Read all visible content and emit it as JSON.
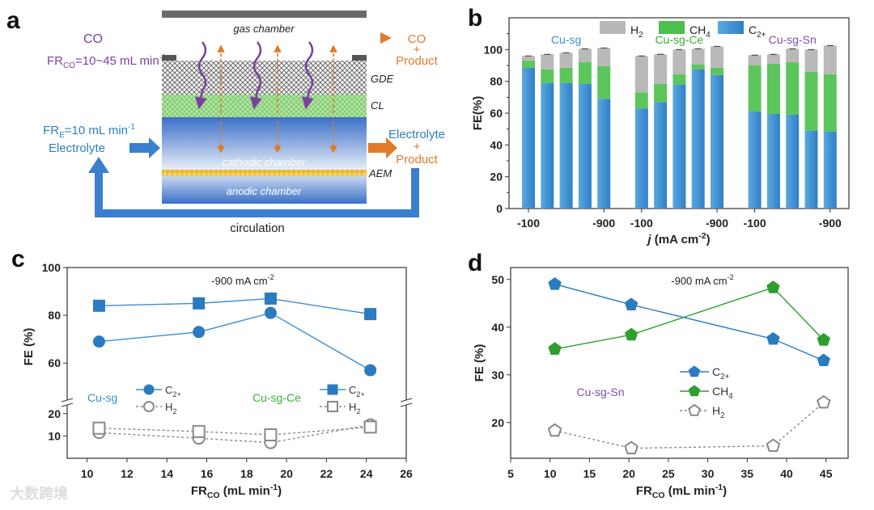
{
  "panel_labels": [
    "a",
    "b",
    "c",
    "d"
  ],
  "panel_a": {
    "gas_chamber": "gas chamber",
    "co_in": "CO",
    "fr_co": "FR",
    "fr_co_sub": "CO",
    "fr_co_value": "=10~45 mL min",
    "fr_co_exp": "-1",
    "co_out_1": "CO",
    "co_out_2": "+",
    "co_out_3": "Product",
    "gde": "GDE",
    "cl": "CL",
    "aem": "AEM",
    "fr_e": "FR",
    "fr_e_sub": "E",
    "fr_e_value": "=10 mL min",
    "fr_e_exp": "-1",
    "electrolyte_in": "Electrolyte",
    "cathodic": "cathodic chamber",
    "anodic": "anodic chamber",
    "out_1": "Electrolyte",
    "out_2": "+",
    "out_3": "Product",
    "circulation": "circulation",
    "colors": {
      "purple": "#7b3fa0",
      "orange": "#e07b2a",
      "blue": "#2f7fc1"
    }
  },
  "watermark": "大数跨境",
  "chart_data": [
    {
      "type": "bar",
      "stacked": true,
      "ylabel": "FE(%)",
      "xlabel_italic": "j",
      "xlabel": " (mA cm",
      "xlabel_exp": "-2",
      "xlabel_end": ")",
      "ylim": [
        0,
        120
      ],
      "yticks": [
        0,
        20,
        40,
        60,
        80,
        100
      ],
      "legend": [
        {
          "name": "H",
          "sub": "2",
          "color": "#b8b8b8"
        },
        {
          "name": "CH",
          "sub": "4",
          "color": "#4cbf4c"
        },
        {
          "name": "C",
          "sub": "2+",
          "color": "#3a8fd0"
        }
      ],
      "groups": [
        {
          "name": "Cu-sg",
          "color": "#3a8fd0",
          "tick_labels": [
            "-100",
            "",
            "",
            "",
            "-900"
          ],
          "C2+": [
            88.5,
            79,
            79,
            78.5,
            69
          ],
          "CH4": [
            4.5,
            8.5,
            9.5,
            13.5,
            20.5
          ],
          "H2": [
            3,
            9.5,
            9.5,
            8.5,
            11.5
          ]
        },
        {
          "name": "Cu-sg-Ce",
          "color": "#3aae3a",
          "tick_labels": [
            "-100",
            "",
            "",
            "",
            "-900"
          ],
          "C2+": [
            63,
            67,
            78,
            87.5,
            84
          ],
          "CH4": [
            10,
            11.5,
            6.5,
            3,
            4.5
          ],
          "H2": [
            23,
            18.5,
            15.5,
            10,
            13.5
          ]
        },
        {
          "name": "Cu-sg-Sn",
          "color": "#7b4fb0",
          "tick_labels": [
            "-100",
            "",
            "",
            "",
            "-900"
          ],
          "C2+": [
            61,
            59.5,
            59,
            49,
            48.5
          ],
          "CH4": [
            29,
            31.5,
            33,
            37,
            36
          ],
          "H2": [
            6.5,
            6,
            8.5,
            14,
            18
          ]
        }
      ]
    },
    {
      "type": "line",
      "annotation": "-900 mA cm",
      "annotation_exp": "-2",
      "ylabel": "FE (%)",
      "xlabel": "FR",
      "xlabel_sub": "CO",
      "xlabel_end": " (mL min",
      "xlabel_exp": "-1",
      "xlabel_close": ")",
      "xlim": [
        9,
        26
      ],
      "xticks": [
        10,
        12,
        14,
        16,
        18,
        20,
        22,
        24,
        26
      ],
      "y_broken": {
        "upper": [
          43.5,
          100
        ],
        "lower": [
          0,
          25
        ]
      },
      "yticks": [
        10,
        20,
        60,
        80,
        100
      ],
      "groups": [
        {
          "name": "Cu-sg",
          "color": "#3a8fd0"
        },
        {
          "name": "Cu-sg-Ce",
          "color": "#3aae3a"
        }
      ],
      "series": [
        {
          "group": 0,
          "name": "C",
          "sub": "2+",
          "marker": "circle",
          "filled": true,
          "color": "#2a7bbf",
          "x": [
            10.6,
            15.6,
            19.2,
            24.2
          ],
          "y": [
            69,
            73,
            81,
            57
          ]
        },
        {
          "group": 0,
          "name": "H",
          "sub": "2",
          "marker": "circle",
          "filled": false,
          "color": "#888888",
          "x": [
            10.6,
            15.6,
            19.2,
            24.2
          ],
          "y": [
            11.5,
            9,
            7,
            15
          ]
        },
        {
          "group": 1,
          "name": "C",
          "sub": "2+",
          "marker": "square",
          "filled": true,
          "color": "#2a7bbf",
          "x": [
            10.6,
            15.6,
            19.2,
            24.2
          ],
          "y": [
            84,
            85,
            87,
            80.5
          ]
        },
        {
          "group": 1,
          "name": "H",
          "sub": "2",
          "marker": "square",
          "filled": false,
          "color": "#888888",
          "x": [
            10.6,
            15.6,
            19.2,
            24.2
          ],
          "y": [
            13.5,
            12,
            10.5,
            14
          ]
        }
      ]
    },
    {
      "type": "line",
      "annotation": "-900 mA cm",
      "annotation_exp": "-2",
      "ylabel": "FE (%)",
      "xlabel": "FR",
      "xlabel_sub": "CO",
      "xlabel_end": " (mL min",
      "xlabel_exp": "-1",
      "xlabel_close": ")",
      "xlim": [
        5,
        47.8
      ],
      "ylim": [
        12.5,
        52.5
      ],
      "xticks": [
        5,
        10,
        15,
        20,
        25,
        30,
        35,
        40,
        45
      ],
      "yticks": [
        20,
        30,
        40,
        50
      ],
      "group_label": {
        "name": "Cu-sg-Sn",
        "color": "#7b4fb0"
      },
      "series": [
        {
          "name": "C",
          "sub": "2+",
          "marker": "pentagon",
          "filled": true,
          "color": "#2a7bbf",
          "x": [
            10.6,
            20.3,
            38.3,
            44.7
          ],
          "y": [
            49,
            44.7,
            37.5,
            33
          ]
        },
        {
          "name": "CH",
          "sub": "4",
          "marker": "pentagon",
          "filled": true,
          "color": "#2f9e2f",
          "x": [
            10.6,
            20.3,
            38.3,
            44.7
          ],
          "y": [
            35.4,
            38.4,
            48.3,
            37.3
          ]
        },
        {
          "name": "H",
          "sub": "2",
          "marker": "pentagon",
          "filled": false,
          "color": "#888888",
          "x": [
            10.6,
            20.3,
            38.3,
            44.7
          ],
          "y": [
            18.3,
            14.6,
            15.1,
            24.2
          ]
        }
      ]
    }
  ]
}
